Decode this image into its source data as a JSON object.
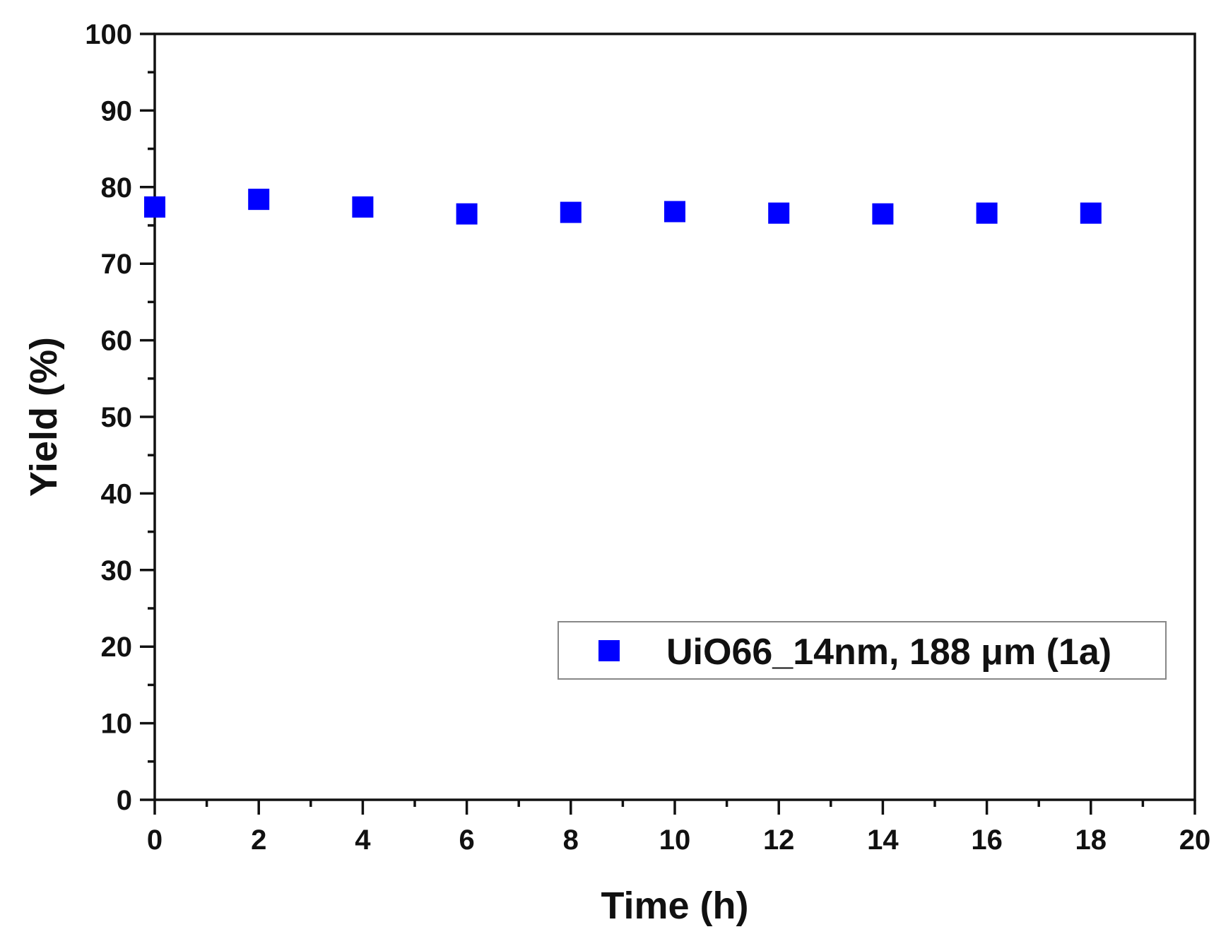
{
  "chart_data": {
    "type": "scatter",
    "xlabel": "Time (h)",
    "ylabel": "Yield (%)",
    "xlim": [
      0,
      20
    ],
    "ylim": [
      0,
      100
    ],
    "xticks": [
      "0",
      "2",
      "4",
      "6",
      "8",
      "10",
      "12",
      "14",
      "16",
      "18",
      "20"
    ],
    "yticks": [
      "0",
      "10",
      "20",
      "30",
      "40",
      "50",
      "60",
      "70",
      "80",
      "90",
      "100"
    ],
    "grid": false,
    "legend_position": "bottom-right",
    "series": [
      {
        "name": "UiO66_14nm, 188 μm (1a)",
        "color": "#0000ff",
        "marker": "square",
        "x": [
          0,
          2,
          4,
          6,
          8,
          10,
          12,
          14,
          16,
          18
        ],
        "y": [
          77.4,
          78.4,
          77.4,
          76.5,
          76.7,
          76.8,
          76.6,
          76.5,
          76.6,
          76.6
        ]
      }
    ]
  }
}
